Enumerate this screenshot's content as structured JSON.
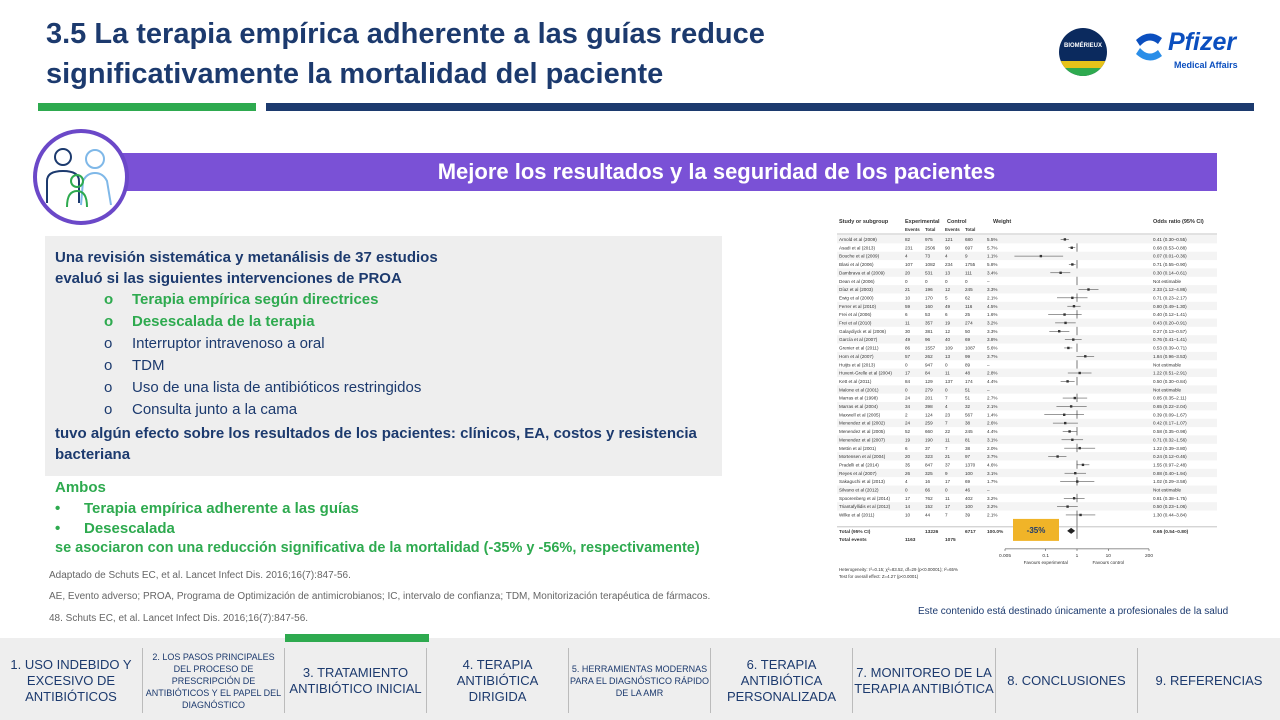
{
  "title": "3.5 La terapia empírica adherente a las guías reduce significativamente la mortalidad del paciente",
  "logos": {
    "biomerieux": "BIOMÉRIEUX",
    "pfizer": "Pfizer",
    "pfizer_sub": "Medical Affairs"
  },
  "banner": "Mejore los resultados y la seguridad de los pacientes",
  "intro_line1": "Una revisión sistemática y metanálisis de 37 estudios",
  "intro_line2": "evaluó si las siguientes intervenciones de PROA",
  "interventions": [
    {
      "text": "Terapia empírica según directrices",
      "highlight": true
    },
    {
      "text": "Desescalada de la terapia",
      "highlight": true
    },
    {
      "text": "Interruptor intravenoso a oral",
      "highlight": false
    },
    {
      "text": "TDM",
      "highlight": false
    },
    {
      "text": "Uso de una lista de antibióticos restringidos",
      "highlight": false
    },
    {
      "text": "Consulta junto a la cama",
      "highlight": false
    }
  ],
  "outcome_text": "tuvo algún efecto sobre los resultados de los pacientes: clínicos, EA, costos y resistencia bacteriana",
  "both_label": "Ambos",
  "both_items": [
    "Terapia empírica adherente a las guías",
    "Desescalada"
  ],
  "conclusion": "se asociaron con una reducción significativa de la mortalidad (-35% y -56%, respectivamente)",
  "adapted": "Adaptado de Schuts EC, et al. Lancet Infect Dis. 2016;16(7):847-56.",
  "abbrev": "AE, Evento adverso; PROA, Programa de Optimización de antimicrobianos; IC, intervalo de confianza; TDM, Monitorización terapéutica de fármacos.",
  "ref48": "48. Schuts EC, et al. Lancet Infect Dis. 2016;16(7):847-56.",
  "forest": {
    "header_study": "Study or subgroup",
    "header_exp": "Experimental",
    "header_ctl": "Control",
    "header_weight": "Weight",
    "header_or": "Odds ratio (95% CI)",
    "subheaders": [
      "Events",
      "Total",
      "Events",
      "Total"
    ],
    "rows": [
      [
        "Arnold et al (2009)",
        "82",
        "975",
        "121",
        "680",
        "5.5%",
        "0.41 (0.30–0.55)"
      ],
      [
        "Asadi et al (2013)",
        "231",
        "2506",
        "90",
        "697",
        "5.7%",
        "0.68 (0.53–0.88)"
      ],
      [
        "Bouche et al (2009)",
        "4",
        "73",
        "4",
        "9",
        "1.1%",
        "0.07 (0.01–0.36)"
      ],
      [
        "Blasi et al (2006)",
        "107",
        "1082",
        "234",
        "1755",
        "5.8%",
        "0.71 (0.55–0.90)"
      ],
      [
        "Dambrava et al (2009)",
        "20",
        "531",
        "13",
        "111",
        "3.4%",
        "0.30 (0.14–0.61)"
      ],
      [
        "Dean et al (2006)",
        "0",
        "0",
        "0",
        "0",
        "–",
        "Not estimable"
      ],
      [
        "Díaz et al (2003)",
        "21",
        "196",
        "12",
        "245",
        "3.3%",
        "2.33 (1.12–4.86)"
      ],
      [
        "Ewig et al (2000)",
        "10",
        "170",
        "5",
        "62",
        "2.1%",
        "0.71 (0.23–2.17)"
      ],
      [
        "Ferrer et al (2010)",
        "59",
        "160",
        "49",
        "116",
        "4.5%",
        "0.80 (0.49–1.30)"
      ],
      [
        "Frei et al (2006)",
        "6",
        "53",
        "6",
        "25",
        "1.6%",
        "0.40 (0.12–1.41)"
      ],
      [
        "Frei et al (2010)",
        "11",
        "357",
        "19",
        "274",
        "3.2%",
        "0.43 (0.20–0.91)"
      ],
      [
        "Galaydiyck et al (2006)",
        "30",
        "381",
        "12",
        "50",
        "3.3%",
        "0.27 (0.13–0.57)"
      ],
      [
        "García et al (2007)",
        "49",
        "96",
        "40",
        "69",
        "3.8%",
        "0.76 (0.41–1.41)"
      ],
      [
        "Grenier et al (2011)",
        "86",
        "1557",
        "109",
        "1087",
        "5.6%",
        "0.53 (0.39–0.71)"
      ],
      [
        "Horn et al (2007)",
        "57",
        "262",
        "13",
        "99",
        "3.7%",
        "1.84 (0.96–3.53)"
      ],
      [
        "Huijts et al (2013)",
        "0",
        "947",
        "0",
        "89",
        "–",
        "Not estimable"
      ],
      [
        "Huvent-Grelle et al (2004)",
        "17",
        "84",
        "11",
        "48",
        "2.8%",
        "1.22 (0.51–2.91)"
      ],
      [
        "Kett et al (2011)",
        "84",
        "129",
        "137",
        "174",
        "4.4%",
        "0.50 (0.30–0.84)"
      ],
      [
        "Malone et al (2001)",
        "0",
        "279",
        "0",
        "51",
        "–",
        "Not estimable"
      ],
      [
        "Marras et al (1998)",
        "24",
        "201",
        "7",
        "51",
        "2.7%",
        "0.85 (0.35–2.11)"
      ],
      [
        "Marras et al (2004)",
        "34",
        "398",
        "4",
        "32",
        "2.1%",
        "0.65 (0.22–2.04)"
      ],
      [
        "Maxwell et al (2005)",
        "2",
        "124",
        "23",
        "567",
        "1.4%",
        "0.39 (0.09–1.67)"
      ],
      [
        "Menendez et al (2002)",
        "24",
        "259",
        "7",
        "38",
        "2.6%",
        "0.42 (0.17–1.07)"
      ],
      [
        "Menendez et al (2005)",
        "52",
        "660",
        "22",
        "245",
        "4.4%",
        "0.58 (0.35–0.98)"
      ],
      [
        "Menendez et al (2007)",
        "19",
        "190",
        "11",
        "81",
        "3.1%",
        "0.71 (0.32–1.56)"
      ],
      [
        "Mettin et al (2001)",
        "6",
        "37",
        "7",
        "38",
        "2.0%",
        "1.22 (0.39–3.80)"
      ],
      [
        "Mortensen et al (2004)",
        "20",
        "323",
        "21",
        "97",
        "3.7%",
        "0.24 (0.12–0.46)"
      ],
      [
        "Pradelli et al (2014)",
        "35",
        "847",
        "37",
        "1370",
        "4.6%",
        "1.55 (0.97–2.48)"
      ],
      [
        "Reyes et al (2007)",
        "26",
        "325",
        "9",
        "100",
        "3.1%",
        "0.88 (0.40–1.94)"
      ],
      [
        "Sakaguchi et al (2013)",
        "4",
        "16",
        "17",
        "69",
        "1.7%",
        "1.02 (0.29–3.58)"
      ],
      [
        "Silvano et al (2012)",
        "0",
        "66",
        "0",
        "46",
        "–",
        "Not estimable"
      ],
      [
        "Spoorenberg et al (2014)",
        "17",
        "762",
        "11",
        "402",
        "3.2%",
        "0.81 (0.38–1.75)"
      ],
      [
        "Triantafyllidis et al (2012)",
        "14",
        "152",
        "17",
        "100",
        "3.2%",
        "0.50 (0.23–1.06)"
      ],
      [
        "Wilke et al (2011)",
        "10",
        "44",
        "7",
        "39",
        "2.1%",
        "1.30 (0.44–3.84)"
      ]
    ],
    "total_label": "Total (95% CI)",
    "total_exp": "13226",
    "total_ctl": "6717",
    "total_weight": "100.0%",
    "total_or": "0.65 (0.54–0.80)",
    "total_events_label": "Total events",
    "total_events_exp": "1163",
    "total_events_ctl": "1075",
    "badge": "-35%",
    "ticks": [
      "0.005",
      "0.1",
      "1",
      "10",
      "200"
    ],
    "favours_left": "Favours experimental",
    "favours_right": "Favours control",
    "heterogeneity": "Heterogeneity: τ²=0.15; χ²=83.52, df=29 (p<0.00001); I²=65%",
    "overall": "Test for overall effect: Z=4.27 (p<0.0001)"
  },
  "note": "Este contenido está destinado únicamente a profesionales de la salud",
  "footer_tabs": [
    "1. USO INDEBIDO Y EXCESIVO DE ANTIBIÓTICOS",
    "2. LOS PASOS PRINCIPALES DEL PROCESO DE PRESCRIPCIÓN DE ANTIBIÓTICOS Y EL PAPEL DEL DIAGNÓSTICO",
    "3. TRATAMIENTO ANTIBIÓTICO INICIAL",
    "4. TERAPIA ANTIBIÓTICA DIRIGIDA",
    "5. HERRAMIENTAS MODERNAS PARA EL DIAGNÓSTICO RÁPIDO DE LA AMR",
    "6. TERAPIA ANTIBIÓTICA PERSONALIZADA",
    "7. MONITOREO DE LA TERAPIA ANTIBIÓTICA",
    "8. CONCLUSIONES",
    "9. REFERENCIAS"
  ]
}
